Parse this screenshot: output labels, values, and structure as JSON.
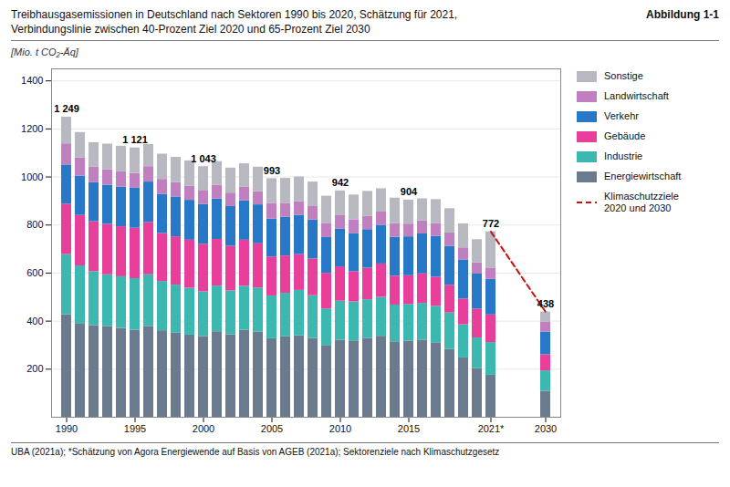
{
  "chart_data": {
    "type": "bar",
    "title": "Treibhausgasemissionen in Deutschland nach Sektoren 1990 bis 2020, Schätzung für 2021,",
    "subtitle": "Verbindungslinie zwischen 40-Prozent Ziel 2020 und 65-Prozent Ziel 2030",
    "caption": "UBA (2021a); *Schätzung von Agora Energiewende auf Basis von AGEB (2021a); Sektorenziele nach Klimaschutzgesetz",
    "y_label": "[Mio. t CO₂-Äq]",
    "categories": [
      "1990",
      null,
      null,
      null,
      null,
      "1995",
      null,
      null,
      null,
      null,
      "2000",
      null,
      null,
      null,
      null,
      "2005",
      null,
      null,
      null,
      null,
      "2010",
      null,
      null,
      null,
      null,
      "2015",
      null,
      null,
      null,
      null,
      null,
      "2021*",
      "2030"
    ],
    "series": [
      {
        "name": "Energiewirtschaft",
        "color": "#6b7b8d",
        "values": [
          427,
          390,
          381,
          378,
          370,
          362,
          378,
          360,
          350,
          342,
          336,
          356,
          343,
          362,
          355,
          327,
          335,
          339,
          328,
          299,
          320,
          318,
          328,
          337,
          314,
          317,
          321,
          310,
          282,
          247,
          202,
          175,
          108
        ]
      },
      {
        "name": "Industrie",
        "color": "#3db8b0",
        "values": [
          250,
          240,
          225,
          215,
          215,
          215,
          215,
          205,
          200,
          195,
          186,
          190,
          183,
          183,
          183,
          178,
          181,
          189,
          178,
          152,
          163,
          162,
          161,
          162,
          153,
          153,
          153,
          152,
          152,
          138,
          128,
          136,
          85
        ]
      },
      {
        "name": "Gebäude",
        "color": "#e8409a",
        "values": [
          210,
          210,
          208,
          210,
          208,
          210,
          218,
          200,
          201,
          200,
          198,
          194,
          186,
          192,
          184,
          162,
          155,
          149,
          153,
          148,
          143,
          126,
          132,
          139,
          120,
          119,
          123,
          121,
          115,
          107,
          120,
          115,
          67
        ]
      },
      {
        "name": "Verkehr",
        "color": "#2878c8",
        "values": [
          163,
          163,
          163,
          163,
          165,
          166,
          168,
          163,
          166,
          166,
          166,
          168,
          165,
          164,
          162,
          158,
          162,
          163,
          162,
          149,
          158,
          159,
          160,
          161,
          162,
          162,
          166,
          170,
          162,
          163,
          146,
          148,
          95
        ]
      },
      {
        "name": "Landwirtschaft",
        "color": "#c080c0",
        "values": [
          88,
          76,
          64,
          64,
          64,
          62,
          64,
          62,
          60,
          59,
          58,
          57,
          56,
          56,
          55,
          65,
          57,
          57,
          56,
          59,
          55,
          57,
          55,
          55,
          57,
          53,
          55,
          53,
          56,
          50,
          47,
          45,
          40
        ]
      },
      {
        "name": "Sonstige",
        "color": "#b8b8c0",
        "values": [
          111,
          106,
          102,
          107,
          106,
          106,
          92,
          105,
          105,
          105,
          99,
          99,
          104,
          98,
          102,
          103,
          104,
          103,
          102,
          113,
          103,
          103,
          104,
          97,
          106,
          100,
          91,
          100,
          101,
          100,
          96,
          153,
          43
        ]
      },
      {
        "name": "Klimaschutzziele\n2020 und 2030",
        "type": "line",
        "line_style": "dashed",
        "color": "#cc1111",
        "values": [
          null,
          null,
          null,
          null,
          null,
          null,
          null,
          null,
          null,
          null,
          null,
          null,
          null,
          null,
          null,
          null,
          null,
          null,
          null,
          null,
          null,
          null,
          null,
          null,
          null,
          null,
          null,
          null,
          null,
          null,
          null,
          772,
          438
        ]
      }
    ],
    "annotations": [
      {
        "x": "1990",
        "y": 1249,
        "text": "1 249"
      },
      {
        "x": "1995",
        "y": 1121,
        "text": "1 121"
      },
      {
        "x": "2000",
        "y": 1043,
        "text": "1 043"
      },
      {
        "x": "2005",
        "y": 993,
        "text": "993"
      },
      {
        "x": "2010",
        "y": 942,
        "text": "942"
      },
      {
        "x": "2015",
        "y": 904,
        "text": "904"
      },
      {
        "x": "2021*",
        "y": 772,
        "text": "772"
      },
      {
        "x": "2030",
        "y": 438,
        "text": "438"
      },
      {
        "text": "Abbildung 1-1"
      }
    ],
    "stacked": true,
    "ylim": [
      0,
      1450
    ],
    "yticks": [
      200,
      400,
      600,
      800,
      1000,
      1200,
      1400
    ],
    "grid": true,
    "legend": "right"
  }
}
